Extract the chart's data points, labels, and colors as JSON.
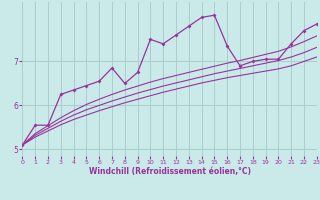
{
  "xlabel": "Windchill (Refroidissement éolien,°C)",
  "background_color": "#caeaea",
  "grid_color": "#aacece",
  "line_color": "#993399",
  "x_data": [
    0,
    1,
    2,
    3,
    4,
    5,
    6,
    7,
    8,
    9,
    10,
    11,
    12,
    13,
    14,
    15,
    16,
    17,
    18,
    19,
    20,
    21,
    22,
    23
  ],
  "main_series": [
    5.1,
    5.55,
    5.55,
    6.25,
    6.35,
    6.45,
    6.55,
    6.85,
    6.5,
    6.75,
    7.5,
    7.4,
    7.6,
    7.8,
    8.0,
    8.05,
    7.35,
    6.9,
    7.0,
    7.05,
    7.05,
    7.4,
    7.7,
    7.85
  ],
  "lower_line": [
    5.1,
    5.28,
    5.42,
    5.56,
    5.68,
    5.78,
    5.88,
    5.97,
    6.06,
    6.14,
    6.22,
    6.3,
    6.37,
    6.44,
    6.51,
    6.57,
    6.63,
    6.68,
    6.73,
    6.78,
    6.83,
    6.9,
    7.0,
    7.1
  ],
  "mid_line": [
    5.1,
    5.32,
    5.48,
    5.64,
    5.78,
    5.9,
    6.0,
    6.1,
    6.19,
    6.28,
    6.36,
    6.44,
    6.51,
    6.58,
    6.65,
    6.72,
    6.78,
    6.84,
    6.9,
    6.96,
    7.02,
    7.1,
    7.2,
    7.32
  ],
  "upper_line": [
    5.1,
    5.36,
    5.54,
    5.72,
    5.88,
    6.02,
    6.14,
    6.25,
    6.35,
    6.44,
    6.53,
    6.61,
    6.68,
    6.75,
    6.82,
    6.89,
    6.96,
    7.02,
    7.09,
    7.16,
    7.23,
    7.33,
    7.45,
    7.58
  ],
  "xlim": [
    0,
    23
  ],
  "ylim": [
    4.85,
    8.35
  ],
  "yticks": [
    5,
    6,
    7
  ],
  "ytick_labels": [
    "5",
    "6",
    "7"
  ],
  "xticks": [
    0,
    1,
    2,
    3,
    4,
    5,
    6,
    7,
    8,
    9,
    10,
    11,
    12,
    13,
    14,
    15,
    16,
    17,
    18,
    19,
    20,
    21,
    22,
    23
  ]
}
